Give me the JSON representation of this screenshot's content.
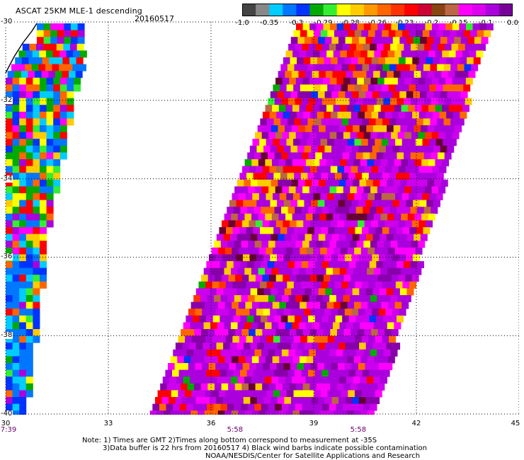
{
  "header": {
    "title": "ASCAT 25KM MLE-1 descending",
    "date": "20160517"
  },
  "colorbar": {
    "colors": [
      "#444444",
      "#888888",
      "#00ccff",
      "#0077ff",
      "#0033ff",
      "#00aa00",
      "#33ee33",
      "#ffff00",
      "#ffcc00",
      "#ff9900",
      "#ff6600",
      "#ff3300",
      "#ff0000",
      "#cc0033",
      "#884411",
      "#bb6644",
      "#ff00ff",
      "#dd00ee",
      "#aa00dd",
      "#770099"
    ],
    "labels": [
      "-1.0",
      "-0.35",
      "-0.3",
      "-0.29",
      "-0.28",
      "-0.26",
      "-0.23",
      "-0.2",
      "-0.15",
      "-0.1",
      "0.0"
    ]
  },
  "map": {
    "lon_range": [
      30,
      45
    ],
    "lat_range": [
      -30,
      -40
    ],
    "x_ticks": [
      "30",
      "33",
      "36",
      "39",
      "42",
      "45"
    ],
    "y_ticks": [
      "-30",
      "-32",
      "-34",
      "-36",
      "-38",
      "-40"
    ],
    "time_labels": [
      {
        "lon": 30,
        "text": "7:39"
      },
      {
        "lon": 36.7,
        "text": "5:58"
      },
      {
        "lon": 40.3,
        "text": "5:58"
      }
    ],
    "swaths": [
      {
        "name": "left swath",
        "time": "7:39"
      },
      {
        "name": "main swath",
        "time": "5:58"
      }
    ]
  },
  "notes": [
    "Note: 1) Times are GMT 2)Times along bottom correspond to measurement at -35S",
    "3)Data buffer is 22 hrs from 20160517 4) Black wind barbs indicate possible contamination",
    "NOAA/NESDIS/Center for Satellite Applications and Research"
  ]
}
